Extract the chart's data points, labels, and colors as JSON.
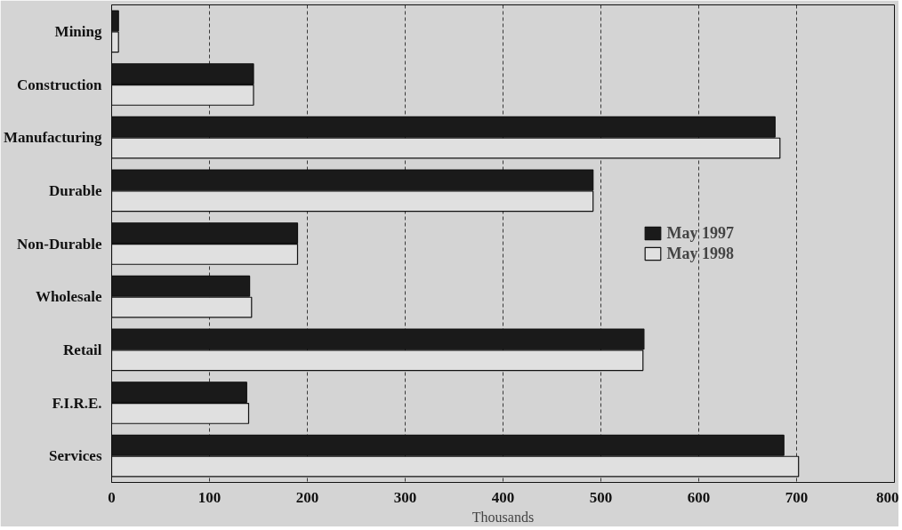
{
  "chart_data": {
    "type": "bar",
    "orientation": "horizontal",
    "xlabel": "Thousands",
    "categories": [
      "Mining",
      "Construction",
      "Manufacturing",
      "Durable",
      "Non-Durable",
      "Wholesale",
      "Retail",
      "F.I.R.E.",
      "Services"
    ],
    "series": [
      {
        "name": "May 1997",
        "color": "#1a1a1a",
        "values": [
          7,
          145,
          678,
          492,
          190,
          141,
          544,
          138,
          687
        ]
      },
      {
        "name": "May 1998",
        "color": "#e0e0e0",
        "values": [
          7,
          145,
          683,
          492,
          190,
          143,
          543,
          140,
          702
        ]
      }
    ],
    "xlim": [
      0,
      800
    ],
    "xticks": [
      0,
      100,
      200,
      300,
      400,
      500,
      600,
      700,
      800
    ],
    "grid": "x",
    "legend": "right"
  }
}
